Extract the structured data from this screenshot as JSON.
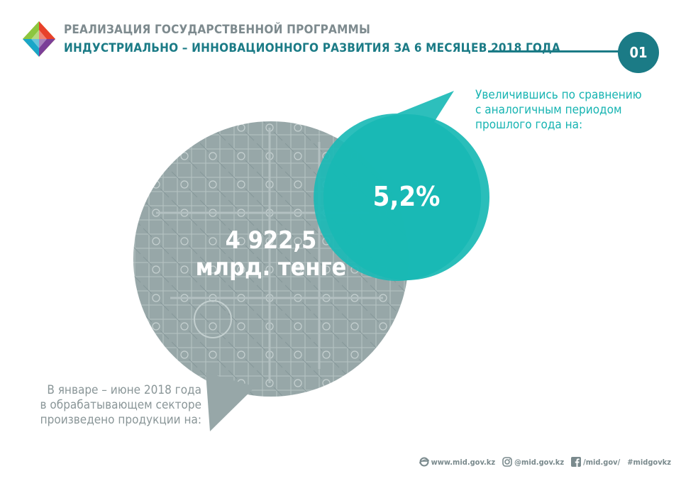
{
  "header": {
    "line1": "РЕАЛИЗАЦИЯ ГОСУДАРСТВЕННОЙ ПРОГРАММЫ",
    "line2": "ИНДУСТРИАЛЬНО – ИННОВАЦИОННОГО РАЗВИТИЯ ЗА 6 МЕСЯЦЕВ 2018 ГОДА",
    "page_number": "01"
  },
  "main": {
    "value_line1": "4 922,5",
    "value_line2": "млрд. тенге",
    "growth_percent": "5,2%",
    "right_note": {
      "line1": "Увеличившись по сравнению",
      "line2": "с аналогичным периодом",
      "line3": "прошлого года на:"
    },
    "left_note": {
      "line1": "В январе – июне 2018 года",
      "line2": "в обрабатывающем секторе",
      "line3": "произведено продукции на:"
    }
  },
  "footer": {
    "website": "www.mid.gov.kz",
    "instagram": "@mid.gov.kz",
    "facebook": "/mid.gov/",
    "hashtag": "#midgovkz"
  },
  "colors": {
    "teal_dark": "#1b7b86",
    "teal_bright": "#17b4b2",
    "gray_bubble": "#95a5a6",
    "gray_text": "#8a9698"
  }
}
